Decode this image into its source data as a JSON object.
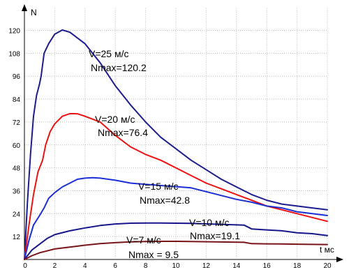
{
  "chart_data": {
    "type": "line",
    "xlabel": "t мс",
    "ylabel": "N",
    "xlim": [
      0,
      20
    ],
    "ylim": [
      0,
      130
    ],
    "grid": true,
    "x_ticks": [
      "0",
      "2",
      "4",
      "6",
      "8",
      "10",
      "12",
      "14",
      "16",
      "18",
      "20"
    ],
    "y_ticks": [
      "12",
      "24",
      "36",
      "48",
      "60",
      "72",
      "84",
      "96",
      "108",
      "120"
    ],
    "colors": {
      "v25": "#1c1c8c",
      "v20": "#ee1111",
      "v15": "#1a2fd4",
      "v10": "#16168a",
      "v7": "#7a1418",
      "grid": "#b8b8b8"
    },
    "series": [
      {
        "key": "v25",
        "speed_label": "V=25 м/с",
        "max_label": "Nmax=120.2",
        "points": [
          [
            0,
            0
          ],
          [
            0.2,
            30
          ],
          [
            0.4,
            55
          ],
          [
            0.6,
            75
          ],
          [
            0.8,
            86
          ],
          [
            1.0,
            92
          ],
          [
            1.1,
            96
          ],
          [
            1.3,
            108
          ],
          [
            1.6,
            113
          ],
          [
            2.0,
            118
          ],
          [
            2.5,
            120.2
          ],
          [
            3.0,
            119
          ],
          [
            4,
            113
          ],
          [
            5,
            103
          ],
          [
            6,
            91
          ],
          [
            7,
            81
          ],
          [
            8,
            72
          ],
          [
            9,
            64
          ],
          [
            10,
            58
          ],
          [
            11,
            52
          ],
          [
            12,
            47
          ],
          [
            13,
            42
          ],
          [
            14,
            38
          ],
          [
            15,
            34
          ],
          [
            16,
            31
          ],
          [
            17,
            29
          ],
          [
            18,
            28
          ],
          [
            19,
            27
          ],
          [
            20,
            26
          ]
        ]
      },
      {
        "key": "v20",
        "speed_label": "V=20 м/с",
        "max_label": "Nmax=76.4",
        "points": [
          [
            0,
            0
          ],
          [
            0.3,
            18
          ],
          [
            0.6,
            34
          ],
          [
            0.9,
            46
          ],
          [
            1.2,
            52
          ],
          [
            1.4,
            60
          ],
          [
            1.7,
            67
          ],
          [
            2.0,
            71
          ],
          [
            2.5,
            75
          ],
          [
            3.0,
            76.4
          ],
          [
            3.5,
            76.3
          ],
          [
            4,
            75
          ],
          [
            5,
            72
          ],
          [
            6,
            65
          ],
          [
            7,
            59
          ],
          [
            8,
            55
          ],
          [
            9,
            52
          ],
          [
            10,
            48
          ],
          [
            11,
            44
          ],
          [
            12,
            40
          ],
          [
            13,
            37
          ],
          [
            14,
            34
          ],
          [
            15,
            31
          ],
          [
            16,
            28
          ],
          [
            17,
            26
          ],
          [
            18,
            24
          ],
          [
            19,
            22
          ],
          [
            20,
            20
          ]
        ]
      },
      {
        "key": "v15",
        "speed_label": "V=15 м/с",
        "max_label": "Nmax=42.8",
        "points": [
          [
            0,
            0
          ],
          [
            0.3,
            10
          ],
          [
            0.6,
            18
          ],
          [
            1,
            23
          ],
          [
            1.3,
            27
          ],
          [
            1.6,
            32
          ],
          [
            2,
            35
          ],
          [
            2.5,
            38
          ],
          [
            3,
            40
          ],
          [
            3.5,
            42
          ],
          [
            4,
            42.6
          ],
          [
            4.5,
            42.8
          ],
          [
            5,
            42.6
          ],
          [
            6,
            41.5
          ],
          [
            7,
            40
          ],
          [
            7.4,
            39.7
          ],
          [
            11,
            37.5
          ],
          [
            12,
            35.5
          ],
          [
            13,
            33.5
          ],
          [
            14,
            31.5
          ],
          [
            15,
            30
          ],
          [
            16,
            28
          ],
          [
            17,
            27
          ],
          [
            18,
            25
          ],
          [
            19,
            24
          ],
          [
            20,
            23
          ]
        ]
      },
      {
        "key": "v10",
        "speed_label": "V=10 м/с",
        "max_label": "Nmax=19.1",
        "points": [
          [
            0,
            0
          ],
          [
            0.5,
            5
          ],
          [
            1,
            8
          ],
          [
            1.5,
            11
          ],
          [
            2,
            13
          ],
          [
            3,
            15
          ],
          [
            4,
            16.5
          ],
          [
            5,
            17.8
          ],
          [
            6,
            18.6
          ],
          [
            7,
            19
          ],
          [
            8,
            19.1
          ],
          [
            9,
            19.1
          ],
          [
            10,
            19
          ],
          [
            11,
            18.9
          ],
          [
            14.5,
            18
          ],
          [
            15,
            16
          ],
          [
            16,
            15.5
          ],
          [
            17,
            15
          ],
          [
            18,
            14
          ],
          [
            19,
            13.5
          ],
          [
            20,
            12.5
          ]
        ]
      },
      {
        "key": "v7",
        "speed_label": "V=7 м/с",
        "max_label": "Nmax = 9.5",
        "points": [
          [
            0,
            0
          ],
          [
            0.5,
            2
          ],
          [
            1,
            3.5
          ],
          [
            1.5,
            4.5
          ],
          [
            2,
            5.5
          ],
          [
            3,
            6.5
          ],
          [
            4,
            7.5
          ],
          [
            5,
            8.3
          ],
          [
            6,
            8.8
          ],
          [
            7,
            9.2
          ],
          [
            8,
            9.4
          ],
          [
            9,
            9.5
          ],
          [
            10,
            9.5
          ],
          [
            11,
            9.4
          ],
          [
            14.5,
            9
          ],
          [
            15,
            8.3
          ],
          [
            16,
            8.2
          ],
          [
            17,
            8.1
          ],
          [
            18,
            8
          ],
          [
            19,
            7.9
          ],
          [
            20,
            7.8
          ]
        ]
      }
    ]
  }
}
